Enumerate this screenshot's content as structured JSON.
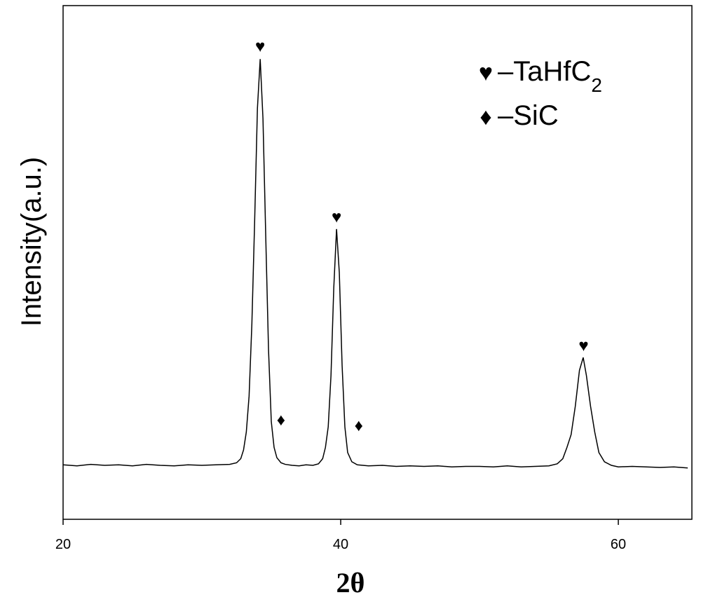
{
  "chart_data": {
    "type": "line",
    "xlabel": "2θ",
    "ylabel": "Intensity(a.u.)",
    "xlim": [
      20,
      65.3
    ],
    "ylim": [
      0,
      100
    ],
    "xticks": [
      20,
      40,
      60
    ],
    "color": "#000000",
    "x": [
      20,
      21,
      22,
      23,
      24,
      25,
      26,
      27,
      28,
      29,
      30,
      31,
      32,
      32.5,
      32.8,
      33.0,
      33.2,
      33.4,
      33.6,
      33.8,
      34.0,
      34.2,
      34.4,
      34.6,
      34.8,
      35.0,
      35.2,
      35.4,
      35.7,
      36,
      36.5,
      37,
      37.5,
      38,
      38.4,
      38.7,
      38.9,
      39.1,
      39.3,
      39.5,
      39.7,
      39.9,
      40.1,
      40.3,
      40.5,
      40.8,
      41.2,
      42,
      43,
      44,
      45,
      46,
      47,
      48,
      49,
      50,
      51,
      52,
      53,
      54,
      55,
      55.6,
      56.0,
      56.3,
      56.6,
      56.9,
      57.2,
      57.47,
      57.7,
      58.0,
      58.3,
      58.6,
      59,
      59.5,
      60,
      61,
      62,
      63,
      64,
      65
    ],
    "values": [
      10.6,
      10.4,
      10.7,
      10.5,
      10.6,
      10.4,
      10.7,
      10.5,
      10.4,
      10.6,
      10.5,
      10.6,
      10.7,
      11.0,
      11.8,
      13.5,
      17,
      24,
      38,
      58,
      80,
      89.6,
      78,
      55,
      33,
      19,
      14,
      12,
      11.0,
      10.7,
      10.5,
      10.4,
      10.6,
      10.5,
      10.8,
      11.8,
      14,
      18,
      28,
      45,
      56.5,
      48,
      30,
      18,
      13,
      11.2,
      10.6,
      10.4,
      10.5,
      10.3,
      10.4,
      10.3,
      10.4,
      10.2,
      10.3,
      10.3,
      10.2,
      10.4,
      10.2,
      10.3,
      10.4,
      10.8,
      11.8,
      14,
      16.5,
      22,
      29,
      31.5,
      28,
      22,
      17,
      13,
      11.2,
      10.5,
      10.2,
      10.3,
      10.2,
      10.1,
      10.2,
      10.0
    ],
    "annotations": [
      {
        "text": "♥",
        "x": 34.2,
        "y": 92.1
      },
      {
        "text": "♥",
        "x": 39.7,
        "y": 58.9
      },
      {
        "text": "♥",
        "x": 57.5,
        "y": 33.8
      },
      {
        "text": "♦",
        "x": 35.7,
        "y": 19.4
      },
      {
        "text": "♦",
        "x": 41.3,
        "y": 18.3
      }
    ],
    "legend": [
      {
        "symbol": "♥",
        "label": "–TaHfC",
        "subscript": "2"
      },
      {
        "symbol": "♦",
        "label": "–SiC"
      }
    ]
  }
}
